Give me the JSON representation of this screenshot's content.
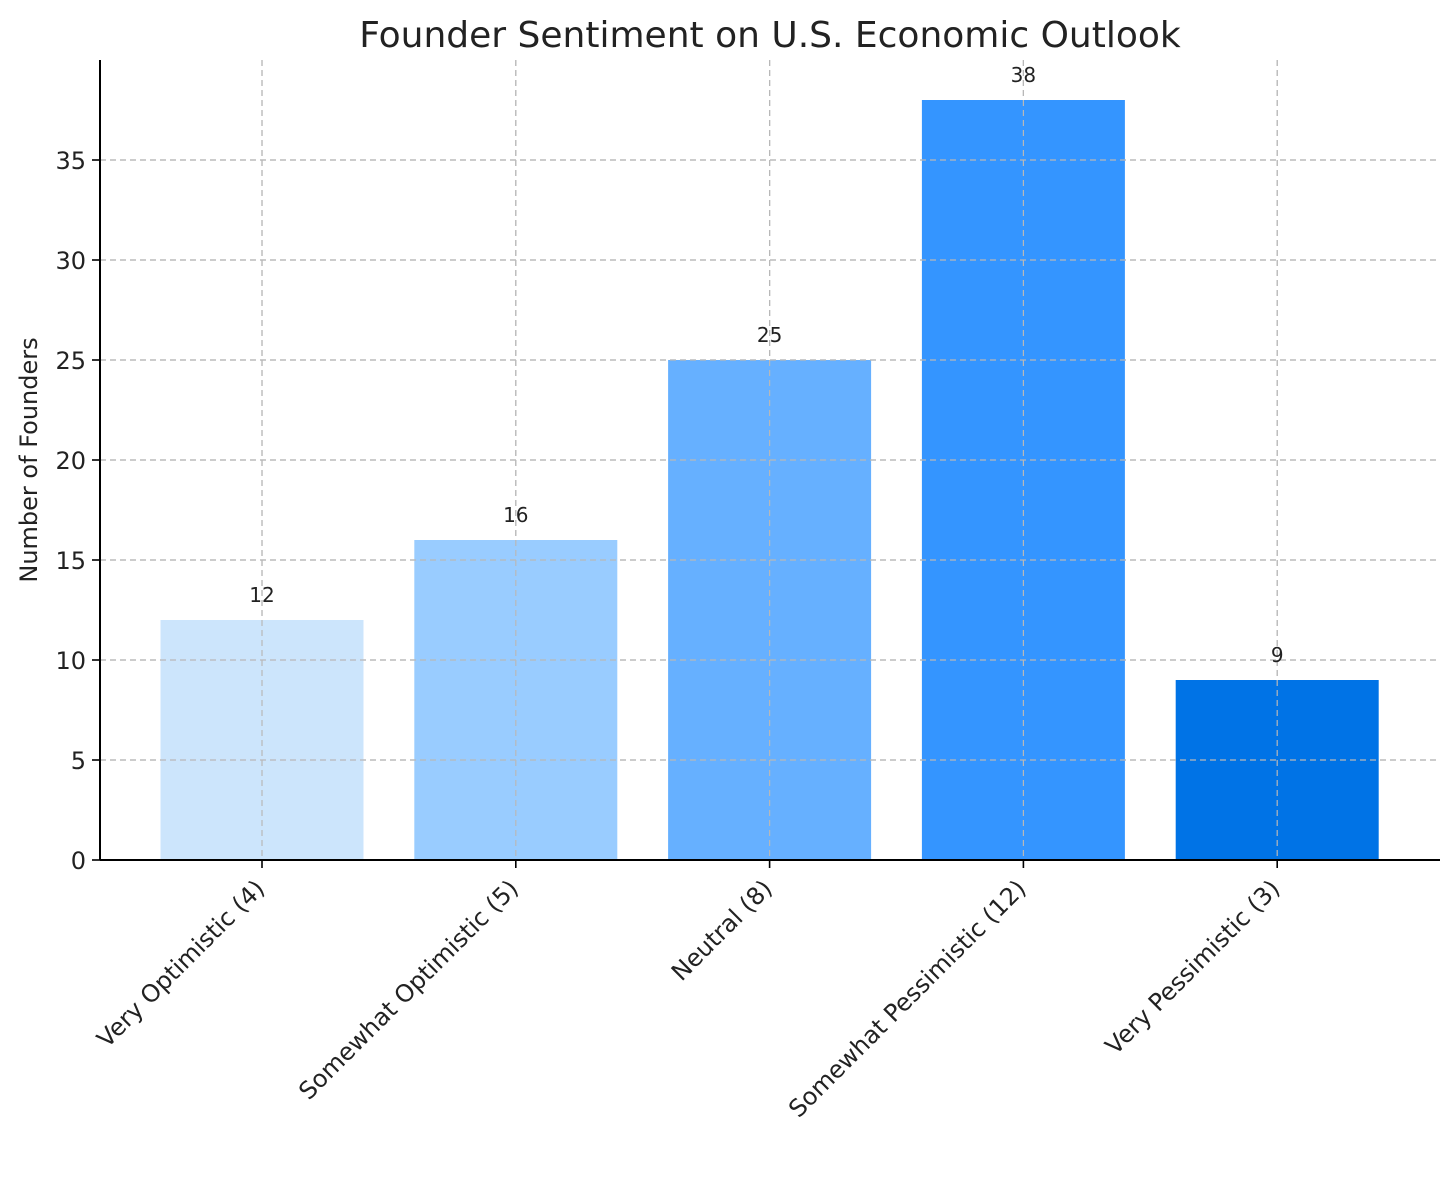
{
  "chart_data": {
    "type": "bar",
    "title": "Founder Sentiment on U.S. Economic Outlook",
    "xlabel": "",
    "ylabel": "Number of Founders",
    "categories": [
      "Very Optimistic (4)",
      "Somewhat Optimistic (5)",
      "Neutral (8)",
      "Somewhat Pessimistic (12)",
      "Very Pessimistic (3)"
    ],
    "values": [
      12,
      16,
      25,
      38,
      9
    ],
    "colors": [
      "#cce5fc",
      "#99ccff",
      "#66b0ff",
      "#3495ff",
      "#0073e6"
    ],
    "ylim": [
      0,
      40
    ],
    "yticks": [
      0,
      5,
      10,
      15,
      20,
      25,
      30,
      35
    ],
    "grid": true,
    "data_labels": true
  }
}
